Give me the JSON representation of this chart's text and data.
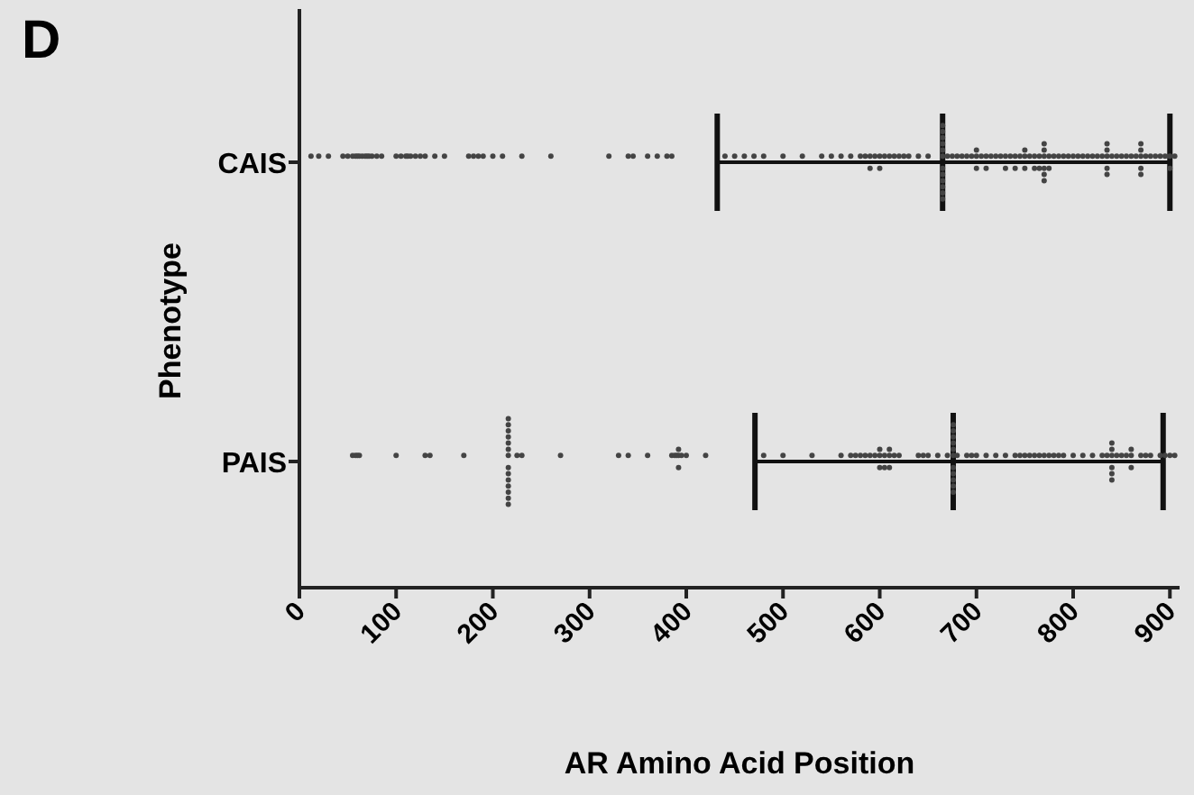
{
  "chart_data": {
    "type": "scatter",
    "orientation": "horizontal",
    "title": "D",
    "xlabel": "AR Amino  Acid Position",
    "ylabel": "Phenotype",
    "categories": [
      "CAIS",
      "PAIS"
    ],
    "xlim": [
      0,
      910
    ],
    "xticks": [
      0,
      100,
      200,
      300,
      400,
      500,
      600,
      700,
      800,
      900
    ],
    "grid": false,
    "marker": "circle",
    "series": [
      {
        "type": "scatter",
        "color": "#444444",
        "x": [
          "CAIS",
          "CAIS",
          "CAIS",
          "CAIS",
          "CAIS",
          "CAIS",
          "CAIS",
          "CAIS",
          "CAIS",
          "CAIS",
          "CAIS",
          "CAIS",
          "CAIS",
          "CAIS",
          "CAIS",
          "CAIS",
          "CAIS",
          "CAIS",
          "CAIS",
          "CAIS",
          "CAIS",
          "CAIS",
          "CAIS",
          "CAIS",
          "CAIS",
          "CAIS",
          "CAIS",
          "CAIS",
          "CAIS",
          "CAIS",
          "CAIS",
          "CAIS",
          "CAIS",
          "CAIS",
          "CAIS",
          "CAIS",
          "CAIS",
          "CAIS",
          "CAIS",
          "CAIS",
          "CAIS",
          "CAIS",
          "CAIS",
          "CAIS",
          "CAIS",
          "CAIS",
          "CAIS",
          "CAIS",
          "CAIS",
          "CAIS",
          "CAIS",
          "CAIS",
          "CAIS",
          "CAIS",
          "CAIS",
          "CAIS",
          "CAIS",
          "CAIS",
          "CAIS",
          "CAIS",
          "CAIS",
          "CAIS",
          "CAIS",
          "CAIS",
          "CAIS",
          "CAIS",
          "CAIS",
          "CAIS",
          "CAIS",
          "CAIS",
          "CAIS",
          "CAIS",
          "CAIS",
          "CAIS",
          "CAIS",
          "CAIS",
          "CAIS",
          "CAIS",
          "CAIS",
          "CAIS",
          "CAIS",
          "CAIS",
          "CAIS",
          "CAIS",
          "CAIS",
          "CAIS",
          "CAIS",
          "CAIS",
          "CAIS",
          "CAIS",
          "CAIS",
          "CAIS",
          "CAIS",
          "CAIS",
          "CAIS",
          "CAIS",
          "CAIS",
          "CAIS",
          "CAIS",
          "CAIS",
          "CAIS",
          "CAIS",
          "CAIS",
          "CAIS",
          "CAIS",
          "CAIS",
          "CAIS",
          "CAIS",
          "CAIS",
          "CAIS",
          "CAIS",
          "CAIS",
          "CAIS",
          "CAIS",
          "CAIS",
          "CAIS",
          "CAIS",
          "CAIS",
          "CAIS",
          "CAIS",
          "CAIS",
          "CAIS",
          "CAIS",
          "CAIS",
          "CAIS",
          "CAIS",
          "CAIS",
          "CAIS",
          "CAIS",
          "CAIS",
          "CAIS",
          "CAIS",
          "CAIS",
          "CAIS",
          "CAIS",
          "CAIS",
          "CAIS",
          "CAIS",
          "CAIS",
          "CAIS",
          "CAIS",
          "CAIS",
          "CAIS",
          "CAIS",
          "CAIS",
          "CAIS",
          "CAIS",
          "CAIS",
          "CAIS",
          "CAIS",
          "CAIS"
        ],
        "values": [
          12,
          20,
          30,
          45,
          50,
          55,
          58,
          60,
          62,
          65,
          68,
          70,
          72,
          75,
          80,
          85,
          100,
          105,
          110,
          112,
          115,
          120,
          125,
          130,
          140,
          150,
          175,
          180,
          185,
          190,
          200,
          210,
          230,
          260,
          320,
          340,
          345,
          360,
          370,
          380,
          385,
          440,
          450,
          460,
          470,
          480,
          500,
          520,
          540,
          550,
          560,
          570,
          580,
          585,
          590,
          590,
          595,
          600,
          600,
          605,
          610,
          615,
          620,
          625,
          630,
          640,
          650,
          665,
          665,
          665,
          665,
          665,
          665,
          665,
          665,
          665,
          665,
          665,
          665,
          670,
          675,
          680,
          685,
          690,
          695,
          700,
          700,
          700,
          705,
          710,
          710,
          715,
          720,
          725,
          730,
          730,
          735,
          740,
          740,
          745,
          750,
          750,
          750,
          755,
          760,
          760,
          765,
          765,
          770,
          770,
          770,
          770,
          770,
          770,
          775,
          775,
          780,
          785,
          790,
          795,
          800,
          805,
          810,
          815,
          820,
          825,
          830,
          835,
          835,
          835,
          835,
          835,
          840,
          845,
          850,
          855,
          860,
          865,
          870,
          870,
          870,
          870,
          870,
          875,
          880,
          885,
          890,
          895,
          900,
          900,
          905
        ]
      },
      {
        "type": "scatter",
        "color": "#444444",
        "x": [
          "PAIS",
          "PAIS",
          "PAIS",
          "PAIS",
          "PAIS",
          "PAIS",
          "PAIS",
          "PAIS",
          "PAIS",
          "PAIS",
          "PAIS",
          "PAIS",
          "PAIS",
          "PAIS",
          "PAIS",
          "PAIS",
          "PAIS",
          "PAIS",
          "PAIS",
          "PAIS",
          "PAIS",
          "PAIS",
          "PAIS",
          "PAIS",
          "PAIS",
          "PAIS",
          "PAIS",
          "PAIS",
          "PAIS",
          "PAIS",
          "PAIS",
          "PAIS",
          "PAIS",
          "PAIS",
          "PAIS",
          "PAIS",
          "PAIS",
          "PAIS",
          "PAIS",
          "PAIS",
          "PAIS",
          "PAIS",
          "PAIS",
          "PAIS",
          "PAIS",
          "PAIS",
          "PAIS",
          "PAIS",
          "PAIS",
          "PAIS",
          "PAIS",
          "PAIS",
          "PAIS",
          "PAIS",
          "PAIS",
          "PAIS",
          "PAIS",
          "PAIS",
          "PAIS",
          "PAIS",
          "PAIS",
          "PAIS",
          "PAIS",
          "PAIS",
          "PAIS",
          "PAIS",
          "PAIS",
          "PAIS",
          "PAIS",
          "PAIS",
          "PAIS",
          "PAIS",
          "PAIS",
          "PAIS",
          "PAIS",
          "PAIS",
          "PAIS",
          "PAIS",
          "PAIS",
          "PAIS",
          "PAIS",
          "PAIS",
          "PAIS",
          "PAIS",
          "PAIS",
          "PAIS",
          "PAIS",
          "PAIS",
          "PAIS",
          "PAIS",
          "PAIS",
          "PAIS",
          "PAIS",
          "PAIS",
          "PAIS",
          "PAIS",
          "PAIS",
          "PAIS",
          "PAIS",
          "PAIS",
          "PAIS",
          "PAIS",
          "PAIS",
          "PAIS",
          "PAIS",
          "PAIS",
          "PAIS",
          "PAIS",
          "PAIS",
          "PAIS",
          "PAIS",
          "PAIS",
          "PAIS",
          "PAIS",
          "PAIS"
        ],
        "values": [
          55,
          58,
          60,
          62,
          100,
          130,
          135,
          170,
          216,
          216,
          216,
          216,
          216,
          216,
          216,
          216,
          216,
          216,
          216,
          216,
          216,
          216,
          225,
          230,
          270,
          330,
          340,
          360,
          385,
          388,
          390,
          392,
          392,
          392,
          395,
          400,
          420,
          480,
          500,
          530,
          560,
          570,
          575,
          580,
          585,
          590,
          595,
          600,
          600,
          600,
          605,
          605,
          610,
          610,
          610,
          615,
          620,
          640,
          645,
          650,
          660,
          670,
          676,
          676,
          676,
          676,
          676,
          676,
          676,
          676,
          676,
          676,
          676,
          680,
          690,
          695,
          700,
          710,
          720,
          730,
          740,
          745,
          750,
          755,
          760,
          765,
          770,
          775,
          780,
          785,
          790,
          800,
          810,
          820,
          830,
          835,
          840,
          840,
          840,
          840,
          840,
          840,
          845,
          850,
          855,
          860,
          860,
          860,
          870,
          875,
          880,
          890,
          895,
          900,
          905
        ]
      },
      {
        "type": "box",
        "color": "#111111",
        "boxes": [
          {
            "low": 432,
            "q1": 432,
            "median": 665,
            "q3": 900,
            "high": 900
          },
          {
            "low": 471,
            "q1": 471,
            "median": 676,
            "q3": 893,
            "high": 893
          }
        ]
      }
    ]
  }
}
